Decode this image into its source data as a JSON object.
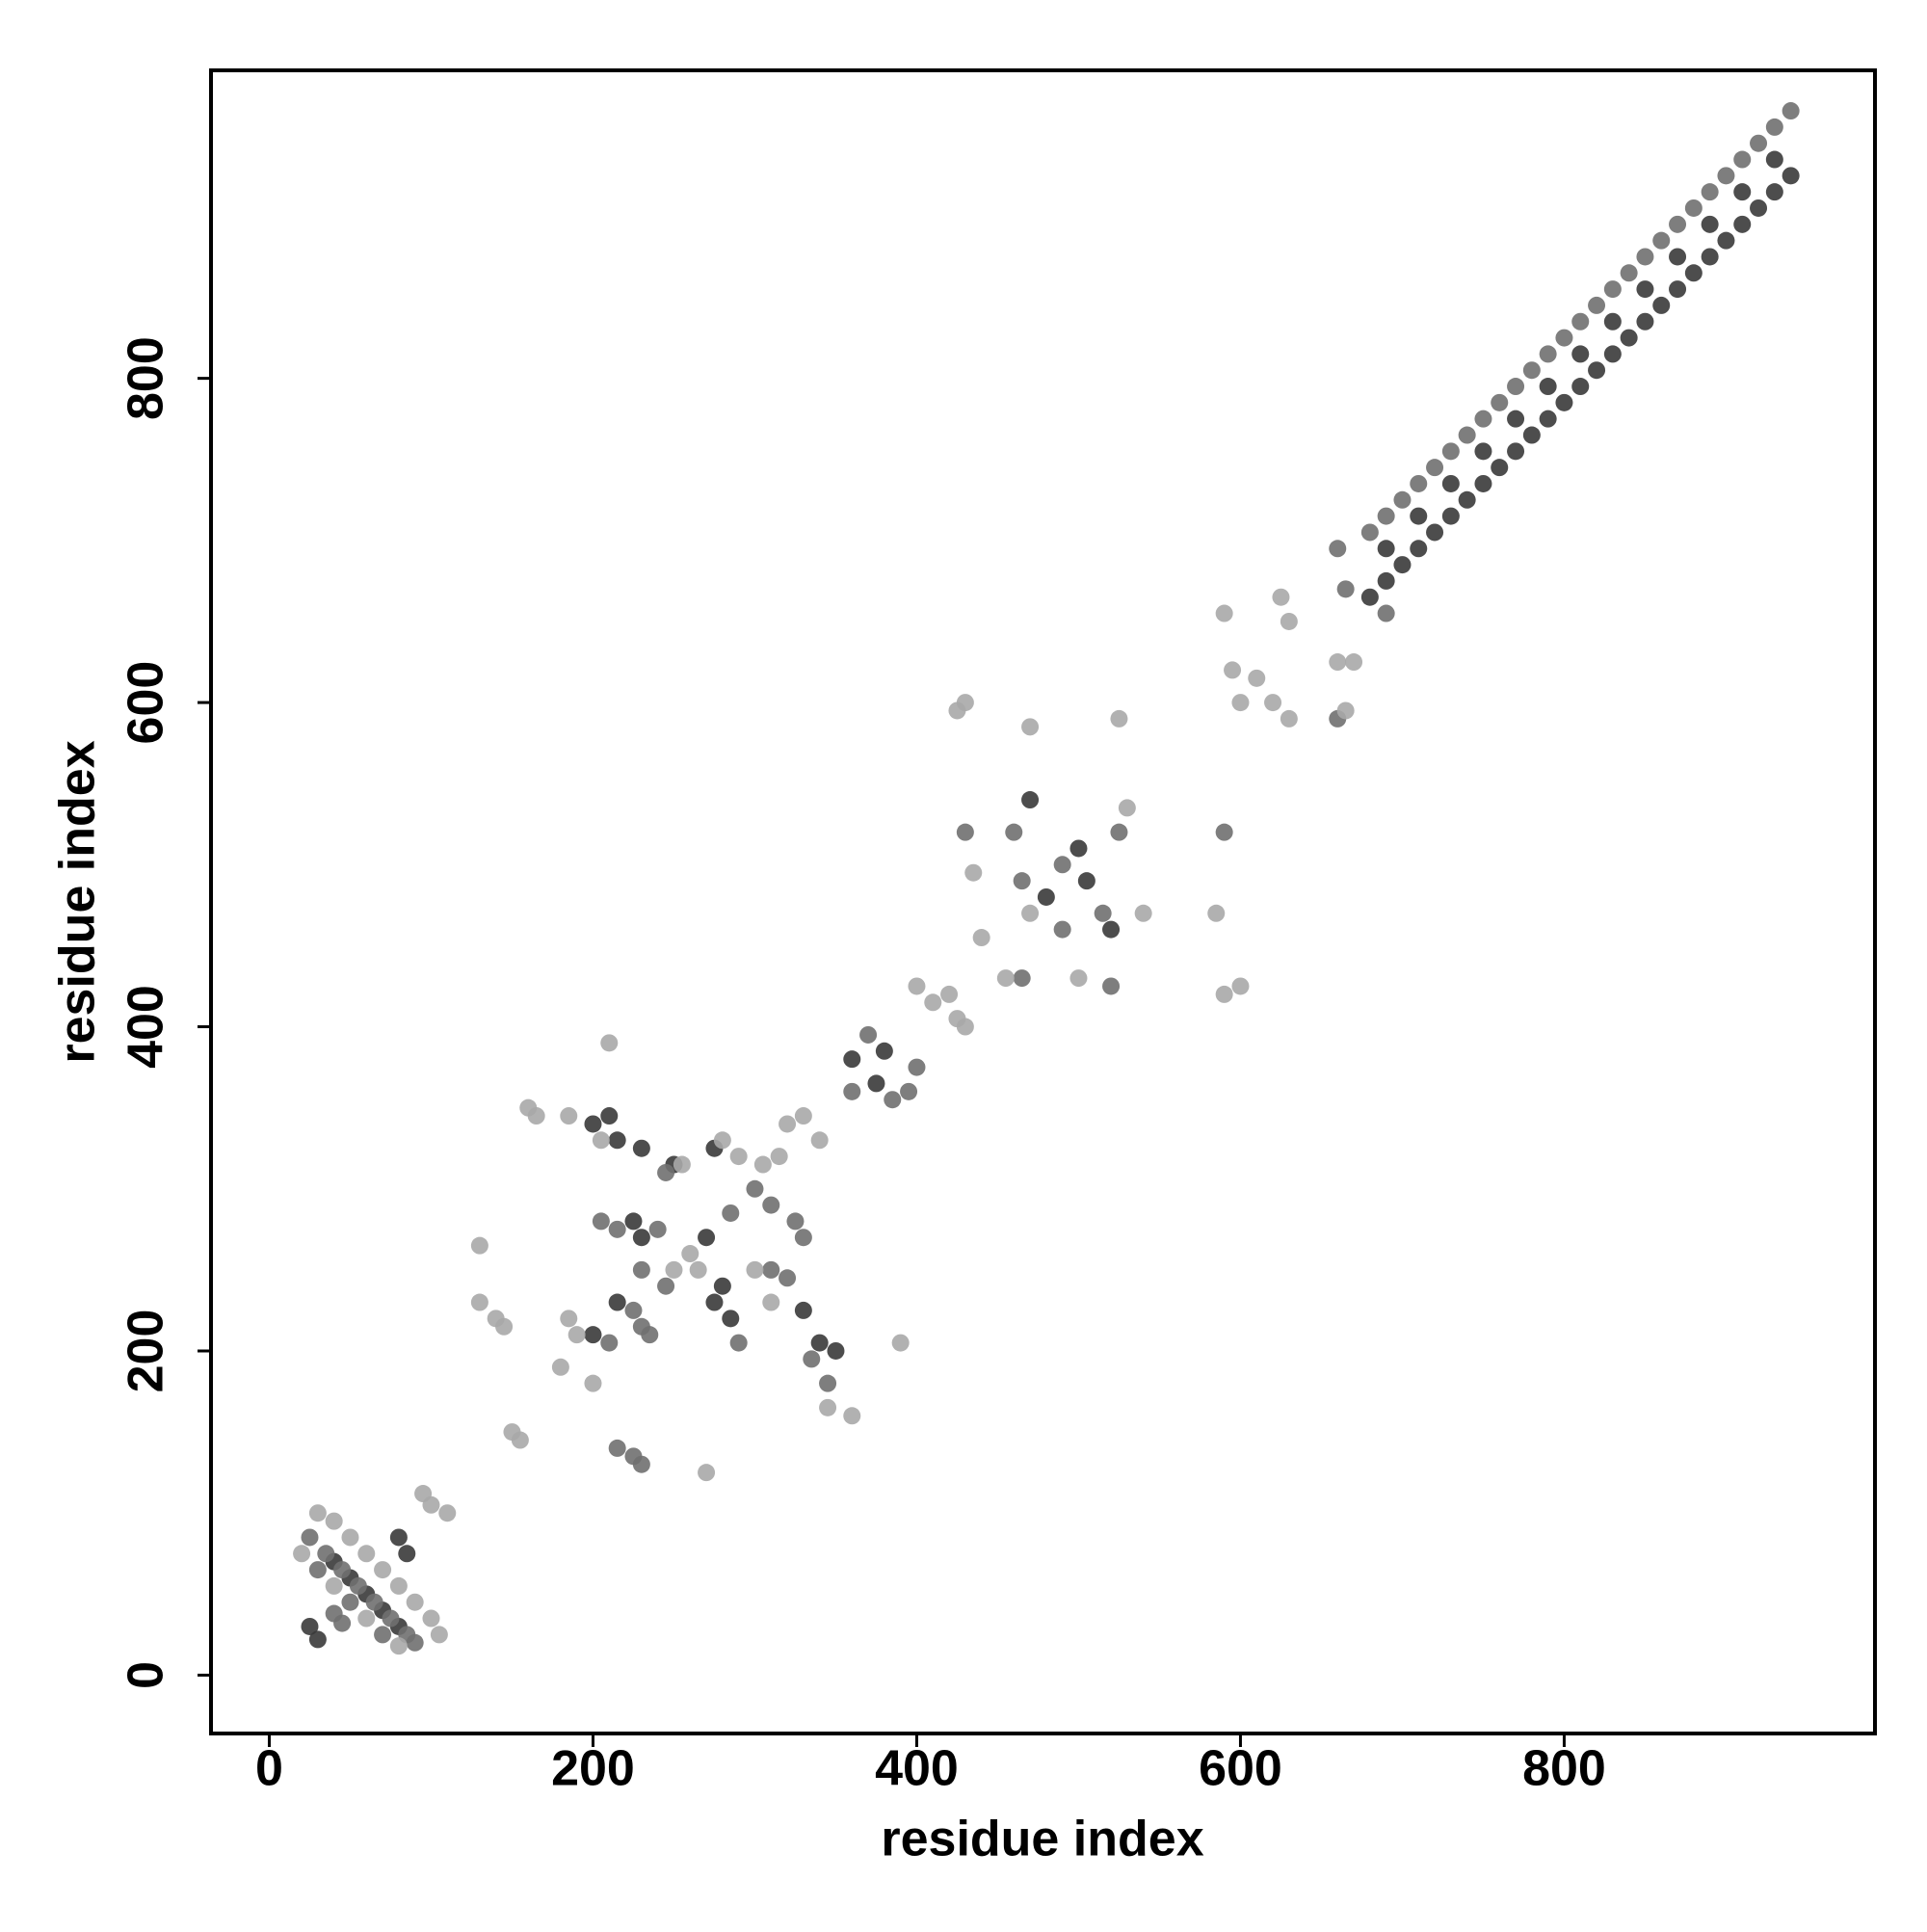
{
  "chart_data": {
    "type": "scatter",
    "x_label": "residue index",
    "y_label": "residue index",
    "xlim": [
      -36,
      992
    ],
    "ylim": [
      -36,
      990
    ],
    "xticks": [
      0,
      200,
      400,
      600,
      800
    ],
    "yticks": [
      0,
      200,
      400,
      600,
      800
    ],
    "series": [
      {
        "color": "#3a3a3a",
        "x": [
          680,
          690,
          700,
          710,
          720,
          730,
          740,
          750,
          760,
          770,
          780,
          790,
          800,
          810,
          820,
          830,
          840,
          850,
          860,
          870,
          880,
          890,
          900,
          910,
          920,
          930,
          940,
          690,
          710,
          730,
          750,
          770,
          790,
          810,
          830,
          850,
          870,
          890,
          910,
          930,
          40,
          50,
          60,
          70,
          80,
          25,
          30,
          80,
          85,
          200,
          210,
          215,
          230,
          225,
          230,
          250,
          275,
          280,
          275,
          285,
          270,
          200,
          215,
          330,
          340,
          350,
          360,
          375,
          380,
          470,
          480,
          500,
          505,
          520
        ],
        "values": [
          665,
          675,
          685,
          695,
          705,
          715,
          725,
          735,
          745,
          755,
          765,
          775,
          785,
          795,
          805,
          815,
          825,
          835,
          845,
          855,
          865,
          875,
          885,
          895,
          905,
          915,
          925,
          695,
          715,
          735,
          755,
          775,
          795,
          815,
          835,
          855,
          875,
          895,
          915,
          935,
          70,
          60,
          50,
          40,
          30,
          30,
          22,
          85,
          75,
          340,
          345,
          330,
          325,
          280,
          270,
          315,
          325,
          240,
          230,
          220,
          270,
          210,
          230,
          225,
          205,
          200,
          380,
          365,
          385,
          540,
          480,
          510,
          490,
          460
        ]
      },
      {
        "color": "#707070",
        "x": [
          680,
          690,
          700,
          710,
          720,
          730,
          740,
          750,
          760,
          770,
          780,
          790,
          800,
          810,
          820,
          830,
          840,
          850,
          860,
          870,
          880,
          890,
          900,
          910,
          920,
          930,
          940,
          25,
          35,
          45,
          55,
          65,
          75,
          85,
          90,
          30,
          50,
          70,
          40,
          45,
          205,
          215,
          240,
          245,
          285,
          300,
          310,
          325,
          330,
          245,
          230,
          290,
          310,
          320,
          210,
          225,
          230,
          235,
          335,
          345,
          215,
          225,
          230,
          370,
          385,
          395,
          400,
          360,
          460,
          465,
          490,
          490,
          515,
          525,
          430,
          465,
          520,
          590,
          660,
          665,
          690,
          660
        ],
        "values": [
          705,
          715,
          725,
          735,
          745,
          755,
          765,
          775,
          785,
          795,
          805,
          815,
          825,
          835,
          845,
          855,
          865,
          875,
          885,
          895,
          905,
          915,
          925,
          935,
          945,
          955,
          965,
          85,
          75,
          65,
          55,
          45,
          35,
          25,
          20,
          65,
          45,
          25,
          38,
          32,
          280,
          275,
          275,
          310,
          285,
          300,
          290,
          280,
          270,
          240,
          250,
          205,
          250,
          245,
          205,
          225,
          215,
          210,
          195,
          180,
          140,
          135,
          130,
          395,
          355,
          360,
          375,
          360,
          520,
          490,
          460,
          500,
          470,
          520,
          520,
          430,
          425,
          520,
          695,
          670,
          655,
          590
        ]
      },
      {
        "color": "#a8a8a8",
        "x": [
          30,
          40,
          50,
          60,
          70,
          80,
          90,
          100,
          105,
          20,
          40,
          60,
          80,
          95,
          100,
          110,
          160,
          165,
          185,
          205,
          255,
          280,
          290,
          305,
          315,
          320,
          330,
          340,
          260,
          250,
          265,
          300,
          185,
          190,
          180,
          200,
          345,
          360,
          270,
          150,
          155,
          130,
          140,
          145,
          130,
          210,
          390,
          310,
          400,
          410,
          425,
          430,
          420,
          425,
          430,
          435,
          440,
          455,
          470,
          470,
          525,
          530,
          500,
          585,
          590,
          600,
          540,
          590,
          595,
          600,
          610,
          620,
          630,
          625,
          630,
          660,
          670,
          665
        ],
        "values": [
          100,
          95,
          85,
          75,
          65,
          55,
          45,
          35,
          25,
          75,
          55,
          35,
          18,
          112,
          105,
          100,
          350,
          345,
          345,
          330,
          315,
          330,
          320,
          315,
          320,
          340,
          345,
          330,
          260,
          250,
          250,
          250,
          220,
          210,
          190,
          180,
          165,
          160,
          125,
          150,
          145,
          265,
          220,
          215,
          230,
          390,
          205,
          230,
          425,
          415,
          405,
          400,
          420,
          595,
          600,
          495,
          455,
          430,
          585,
          470,
          590,
          535,
          430,
          470,
          420,
          425,
          470,
          655,
          620,
          600,
          615,
          600,
          590,
          665,
          650,
          625,
          625,
          595
        ]
      }
    ]
  }
}
